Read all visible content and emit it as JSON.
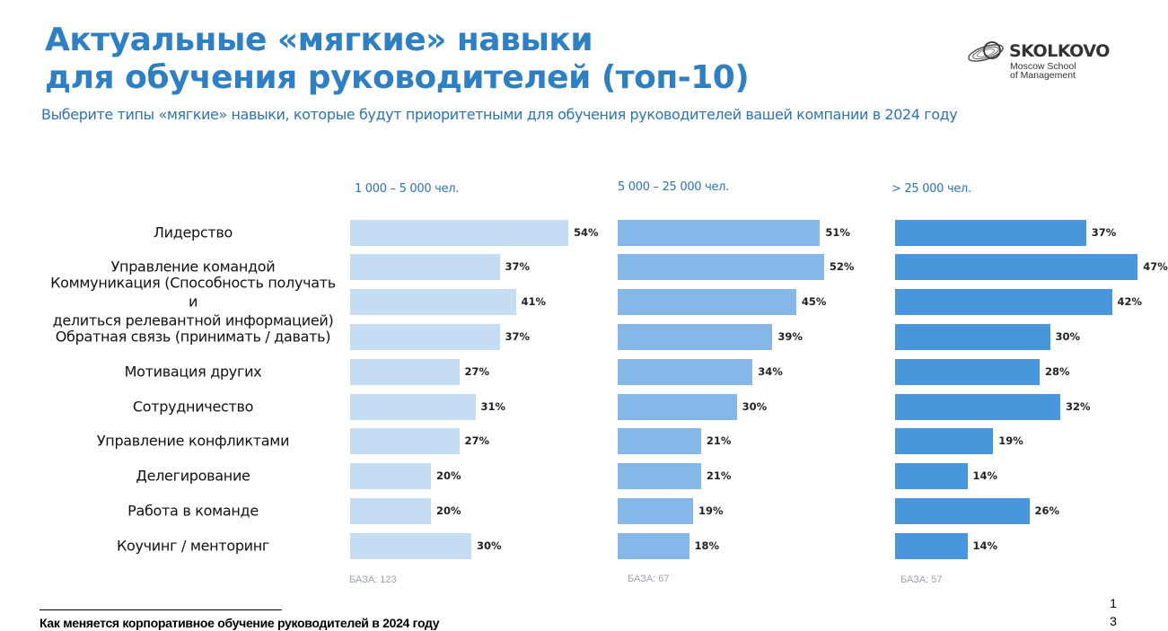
{
  "header": {
    "title_line1": "Актуальные «мягкие» навыки",
    "title_line2": "для обучения руководителей (топ-10)",
    "subtitle": "Выберите типы «мягкие» навыки, которые будут приоритетными для обучения руководителей вашей компании в 2024 году"
  },
  "logo": {
    "name": "SKOLKOVO",
    "sub_line1": "Moscow School",
    "sub_line2": "of Management",
    "icon": "skolkovo-logo-mark"
  },
  "chart_data": {
    "type": "bar",
    "orientation": "horizontal",
    "categories": [
      [
        "Лидерство"
      ],
      [
        "Управление командой"
      ],
      [
        "Коммуникация (Способность получать и",
        "делиться релевантной информацией)"
      ],
      [
        "Обратная связь (принимать / давать)"
      ],
      [
        "Мотивация других"
      ],
      [
        "Сотрудничество"
      ],
      [
        "Управление конфликтами"
      ],
      [
        "Делегирование"
      ],
      [
        "Работа в команде"
      ],
      [
        "Коучинг / менторинг"
      ]
    ],
    "unit": "%",
    "series": [
      {
        "name": "1 000 – 5 000 чел.",
        "base": "БАЗА: 123",
        "color": "#c5ddf3",
        "values": [
          54,
          37,
          41,
          37,
          27,
          31,
          27,
          20,
          20,
          30
        ]
      },
      {
        "name": "5 000 – 25 000 чел.",
        "base": "БАЗА: 67",
        "color": "#85b8e9",
        "values": [
          51,
          52,
          45,
          39,
          34,
          30,
          21,
          21,
          19,
          18
        ]
      },
      {
        "name": "> 25 000 чел.",
        "base": "БАЗА: 57",
        "color": "#4a96dc",
        "values": [
          37,
          47,
          42,
          30,
          28,
          32,
          19,
          14,
          26,
          14
        ]
      }
    ]
  },
  "footer": {
    "text": "Как меняется корпоративное обучение руководителей в 2024 году",
    "page_line1": "1",
    "page_line2": "3"
  }
}
